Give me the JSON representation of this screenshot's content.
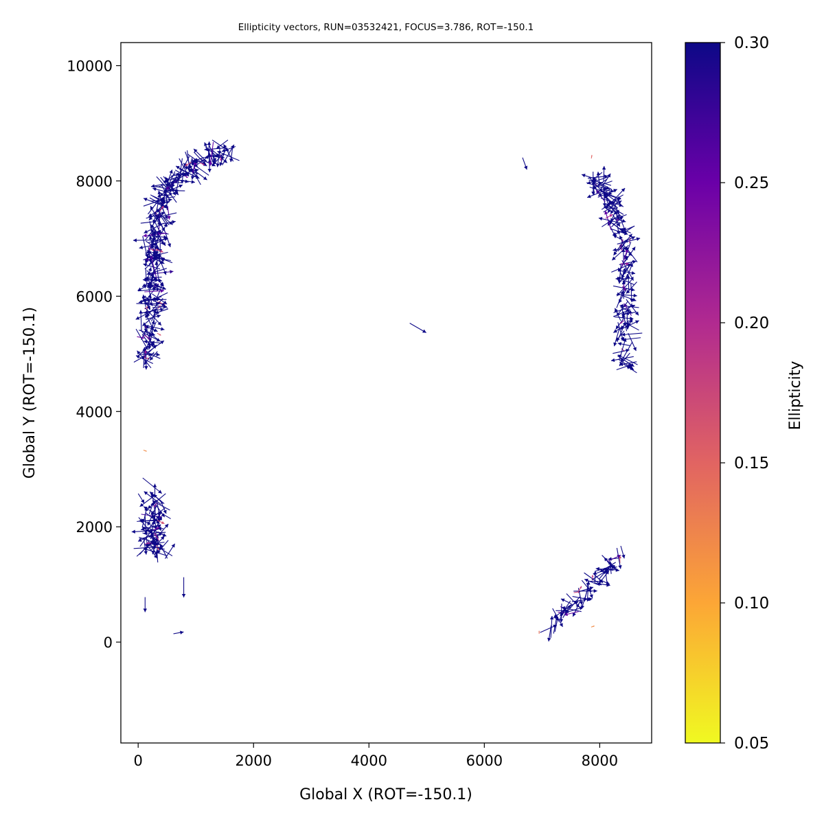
{
  "chart_data": {
    "type": "quiver",
    "title": "Ellipticity vectors, RUN=03532421, FOCUS=3.786, ROT=-150.1",
    "xlabel": "Global X (ROT=-150.1)",
    "ylabel": "Global Y (ROT=-150.1)",
    "xlim": [
      -300,
      8900
    ],
    "ylim": [
      -1750,
      10400
    ],
    "xticks": [
      0,
      2000,
      4000,
      6000,
      8000
    ],
    "yticks": [
      0,
      2000,
      4000,
      6000,
      8000,
      10000
    ],
    "grid": false,
    "colorbar": {
      "label": "Ellipticity",
      "colormap": "plasma_r",
      "range": [
        0.05,
        0.3
      ],
      "ticks": [
        "0.05",
        "0.10",
        "0.15",
        "0.20",
        "0.25",
        "0.30"
      ]
    },
    "clusters": [
      {
        "name": "top-left",
        "note": "dense arc of vectors",
        "spine": [
          [
            200,
            4900
          ],
          [
            230,
            5600
          ],
          [
            280,
            6300
          ],
          [
            300,
            7000
          ],
          [
            380,
            7600
          ],
          [
            600,
            8000
          ],
          [
            1000,
            8300
          ],
          [
            1600,
            8500
          ]
        ],
        "spread": 180,
        "count": 260,
        "length": 330
      },
      {
        "name": "top-right",
        "note": "dense band of vectors",
        "spine": [
          [
            7900,
            8100
          ],
          [
            8150,
            7700
          ],
          [
            8350,
            7200
          ],
          [
            8450,
            6600
          ],
          [
            8450,
            6000
          ],
          [
            8450,
            5300
          ],
          [
            8450,
            4750
          ]
        ],
        "spread": 160,
        "count": 150,
        "length": 320
      },
      {
        "name": "bottom-left",
        "note": "compact group",
        "spine": [
          [
            250,
            2550
          ],
          [
            300,
            2150
          ],
          [
            200,
            1750
          ],
          [
            400,
            1550
          ]
        ],
        "spread": 170,
        "count": 75,
        "length": 330
      },
      {
        "name": "bottom-right",
        "note": "diagonal band",
        "spine": [
          [
            7200,
            250
          ],
          [
            7550,
            650
          ],
          [
            7950,
            1050
          ],
          [
            8350,
            1500
          ]
        ],
        "spread": 170,
        "count": 60,
        "length": 320
      }
    ],
    "isolated_vectors": [
      {
        "x": 4850,
        "y": 5450,
        "angle_deg": -30,
        "length": 330,
        "e": 0.3
      },
      {
        "x": 6700,
        "y": 8300,
        "angle_deg": -70,
        "length": 220,
        "e": 0.3
      },
      {
        "x": 700,
        "y": 160,
        "angle_deg": 10,
        "length": 180,
        "e": 0.3
      },
      {
        "x": 120,
        "y": 650,
        "angle_deg": -90,
        "length": 260,
        "e": 0.3
      },
      {
        "x": 790,
        "y": 950,
        "angle_deg": -90,
        "length": 350,
        "e": 0.3
      },
      {
        "x": 120,
        "y": 3320,
        "angle_deg": -20,
        "length": 60,
        "e": 0.12
      },
      {
        "x": 7860,
        "y": 8420,
        "angle_deg": 80,
        "length": 60,
        "e": 0.15
      },
      {
        "x": 7880,
        "y": 270,
        "angle_deg": 20,
        "length": 60,
        "e": 0.12
      },
      {
        "x": 6950,
        "y": 170,
        "angle_deg": 90,
        "length": 50,
        "e": 0.14
      }
    ]
  }
}
